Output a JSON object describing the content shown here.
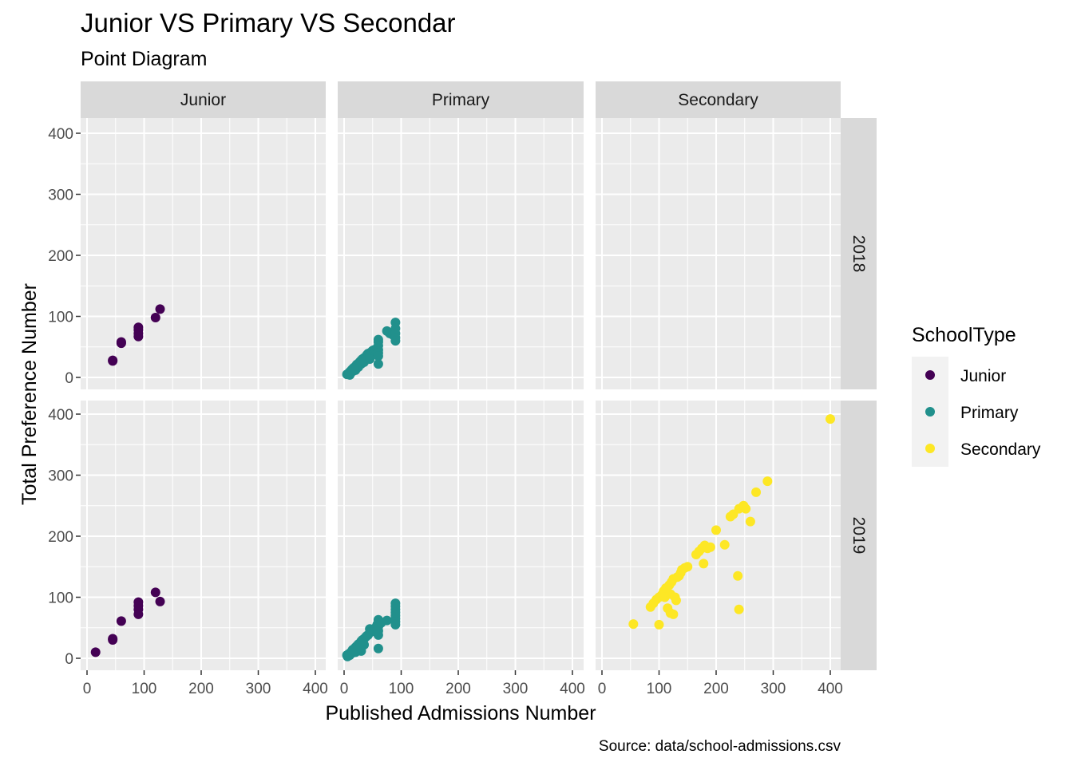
{
  "chart_data": {
    "type": "scatter",
    "title": "Junior VS Primary VS Secondar",
    "subtitle": "Point Diagram",
    "xlabel": "Published Admissions Number",
    "ylabel": "Total Preference Number",
    "caption": "Source: data/school-admissions.csv",
    "xlim": [
      0,
      400
    ],
    "ylim": [
      0,
      400
    ],
    "x_ticks": [
      0,
      100,
      200,
      300,
      400
    ],
    "y_ticks": [
      0,
      100,
      200,
      300,
      400
    ],
    "grid": true,
    "legend_title": "SchoolType",
    "legend_position": "right",
    "col_facets": [
      "Junior",
      "Primary",
      "Secondary"
    ],
    "row_facets": [
      "2018",
      "2019"
    ],
    "series": [
      {
        "name": "Junior",
        "color": "#440154"
      },
      {
        "name": "Primary",
        "color": "#21908C"
      },
      {
        "name": "Secondary",
        "color": "#FDE725"
      }
    ],
    "panels": [
      {
        "col": "Junior",
        "row": "2018",
        "series": "Junior",
        "points": [
          [
            45,
            28
          ],
          [
            45,
            27
          ],
          [
            60,
            58
          ],
          [
            60,
            56
          ],
          [
            90,
            82
          ],
          [
            90,
            78
          ],
          [
            90,
            72
          ],
          [
            90,
            67
          ],
          [
            120,
            98
          ],
          [
            128,
            112
          ]
        ]
      },
      {
        "col": "Primary",
        "row": "2018",
        "series": "Primary",
        "points": [
          [
            5,
            5
          ],
          [
            8,
            7
          ],
          [
            10,
            9
          ],
          [
            12,
            11
          ],
          [
            14,
            13
          ],
          [
            15,
            14
          ],
          [
            17,
            16
          ],
          [
            20,
            18
          ],
          [
            22,
            21
          ],
          [
            25,
            23
          ],
          [
            28,
            26
          ],
          [
            30,
            28
          ],
          [
            30,
            22
          ],
          [
            32,
            30
          ],
          [
            35,
            32
          ],
          [
            38,
            34
          ],
          [
            40,
            37
          ],
          [
            42,
            39
          ],
          [
            45,
            40
          ],
          [
            45,
            35
          ],
          [
            48,
            42
          ],
          [
            50,
            44
          ],
          [
            52,
            45
          ],
          [
            55,
            46
          ],
          [
            58,
            48
          ],
          [
            60,
            52
          ],
          [
            60,
            45
          ],
          [
            60,
            40
          ],
          [
            60,
            35
          ],
          [
            60,
            22
          ],
          [
            60,
            58
          ],
          [
            60,
            62
          ],
          [
            75,
            76
          ],
          [
            80,
            72
          ],
          [
            85,
            70
          ],
          [
            90,
            90
          ],
          [
            90,
            80
          ],
          [
            90,
            72
          ],
          [
            90,
            65
          ],
          [
            90,
            60
          ],
          [
            10,
            4
          ],
          [
            12,
            8
          ],
          [
            20,
            12
          ],
          [
            25,
            17
          ],
          [
            35,
            25
          ],
          [
            45,
            30
          ],
          [
            15,
            10
          ],
          [
            18,
            15
          ]
        ]
      },
      {
        "col": "Secondary",
        "row": "2018",
        "series": "Secondary",
        "points": []
      },
      {
        "col": "Junior",
        "row": "2019",
        "series": "Junior",
        "points": [
          [
            15,
            10
          ],
          [
            45,
            32
          ],
          [
            45,
            30
          ],
          [
            60,
            61
          ],
          [
            90,
            92
          ],
          [
            90,
            86
          ],
          [
            90,
            80
          ],
          [
            90,
            72
          ],
          [
            120,
            108
          ],
          [
            128,
            93
          ]
        ]
      },
      {
        "col": "Primary",
        "row": "2019",
        "series": "Primary",
        "points": [
          [
            5,
            5
          ],
          [
            6,
            3
          ],
          [
            8,
            7
          ],
          [
            10,
            8
          ],
          [
            12,
            10
          ],
          [
            14,
            12
          ],
          [
            15,
            14
          ],
          [
            18,
            16
          ],
          [
            20,
            18
          ],
          [
            22,
            20
          ],
          [
            25,
            23
          ],
          [
            28,
            25
          ],
          [
            30,
            28
          ],
          [
            30,
            12
          ],
          [
            32,
            30
          ],
          [
            35,
            32
          ],
          [
            38,
            35
          ],
          [
            40,
            37
          ],
          [
            42,
            38
          ],
          [
            45,
            42
          ],
          [
            45,
            48
          ],
          [
            48,
            44
          ],
          [
            50,
            46
          ],
          [
            52,
            48
          ],
          [
            55,
            50
          ],
          [
            58,
            55
          ],
          [
            60,
            63
          ],
          [
            60,
            58
          ],
          [
            60,
            52
          ],
          [
            60,
            45
          ],
          [
            60,
            38
          ],
          [
            60,
            16
          ],
          [
            65,
            58
          ],
          [
            75,
            62
          ],
          [
            90,
            90
          ],
          [
            90,
            85
          ],
          [
            90,
            80
          ],
          [
            90,
            75
          ],
          [
            90,
            70
          ],
          [
            90,
            65
          ],
          [
            90,
            60
          ],
          [
            90,
            55
          ],
          [
            10,
            5
          ],
          [
            20,
            10
          ],
          [
            25,
            15
          ],
          [
            35,
            22
          ],
          [
            15,
            9
          ]
        ]
      },
      {
        "col": "Secondary",
        "row": "2019",
        "series": "Secondary",
        "points": [
          [
            55,
            56
          ],
          [
            85,
            84
          ],
          [
            90,
            90
          ],
          [
            95,
            96
          ],
          [
            100,
            100
          ],
          [
            100,
            55
          ],
          [
            105,
            104
          ],
          [
            108,
            110
          ],
          [
            110,
            100
          ],
          [
            112,
            115
          ],
          [
            115,
            82
          ],
          [
            118,
            120
          ],
          [
            120,
            74
          ],
          [
            120,
            105
          ],
          [
            122,
            125
          ],
          [
            125,
            72
          ],
          [
            125,
            130
          ],
          [
            128,
            100
          ],
          [
            130,
            95
          ],
          [
            132,
            133
          ],
          [
            135,
            135
          ],
          [
            138,
            140
          ],
          [
            140,
            145
          ],
          [
            145,
            148
          ],
          [
            150,
            150
          ],
          [
            165,
            170
          ],
          [
            170,
            175
          ],
          [
            175,
            180
          ],
          [
            178,
            155
          ],
          [
            180,
            185
          ],
          [
            185,
            180
          ],
          [
            190,
            182
          ],
          [
            200,
            210
          ],
          [
            215,
            186
          ],
          [
            225,
            232
          ],
          [
            230,
            236
          ],
          [
            238,
            135
          ],
          [
            240,
            245
          ],
          [
            240,
            80
          ],
          [
            248,
            250
          ],
          [
            252,
            245
          ],
          [
            260,
            224
          ],
          [
            270,
            272
          ],
          [
            290,
            290
          ],
          [
            400,
            392
          ]
        ]
      }
    ]
  }
}
